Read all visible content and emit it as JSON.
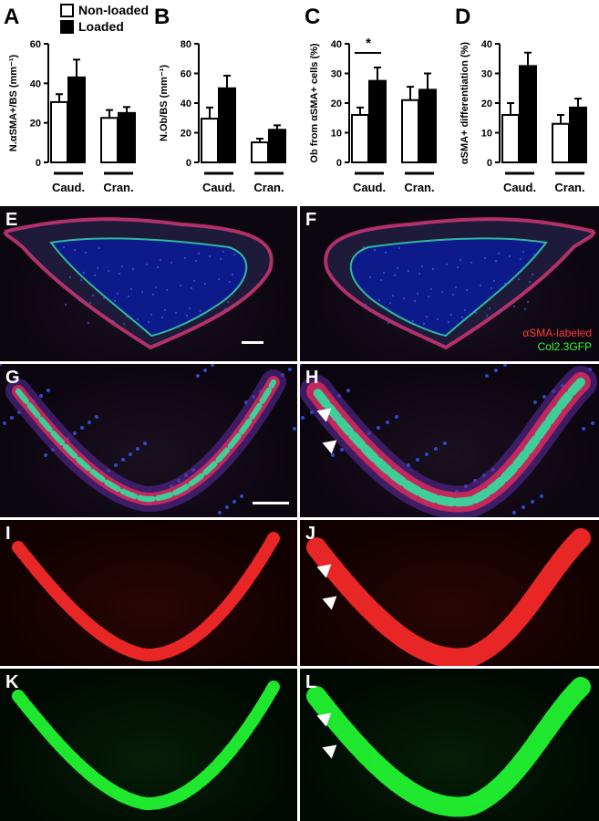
{
  "legend": {
    "nonloaded": "Non-loaded",
    "loaded": "Loaded"
  },
  "colors": {
    "nonloaded_fill": "#ffffff",
    "loaded_fill": "#000000",
    "alpha_sma": "#ff3a3a",
    "col23": "#33ff33"
  },
  "charts": [
    {
      "letter": "A",
      "ylabel": "N.αSMA+/BS (mm⁻¹)",
      "ticks": [
        "0",
        "20",
        "40",
        "60"
      ],
      "ylim": [
        0,
        60
      ],
      "groups": [
        "Caud.",
        "Cran."
      ],
      "significance": ""
    },
    {
      "letter": "B",
      "ylabel": "N.Ob/BS (mm⁻¹)",
      "ticks": [
        "0",
        "20",
        "40",
        "60",
        "80"
      ],
      "ylim": [
        0,
        80
      ],
      "groups": [
        "Caud.",
        "Cran."
      ],
      "significance": ""
    },
    {
      "letter": "C",
      "ylabel": "Ob from αSMA+ cells (%)",
      "ticks": [
        "0",
        "10",
        "20",
        "30",
        "40"
      ],
      "ylim": [
        0,
        40
      ],
      "groups": [
        "Caud.",
        "Cran."
      ],
      "significance": "*"
    },
    {
      "letter": "D",
      "ylabel": "αSMA+ differentiation (%)",
      "ticks": [
        "0",
        "10",
        "20",
        "30",
        "40"
      ],
      "ylim": [
        0,
        40
      ],
      "groups": [
        "Caud.",
        "Cran."
      ],
      "significance": ""
    }
  ],
  "chart_data": [
    {
      "type": "bar",
      "categories": [
        "Caud.",
        "Cran."
      ],
      "series": [
        {
          "name": "Non-loaded",
          "values": [
            30.5,
            22.5
          ],
          "errors": [
            4,
            4
          ]
        },
        {
          "name": "Loaded",
          "values": [
            43,
            25
          ],
          "errors": [
            9,
            3
          ]
        }
      ],
      "ylabel": "N.αSMA+/BS (mm⁻¹)",
      "ylim": [
        0,
        60
      ]
    },
    {
      "type": "bar",
      "categories": [
        "Caud.",
        "Cran."
      ],
      "series": [
        {
          "name": "Non-loaded",
          "values": [
            29.5,
            13.5
          ],
          "errors": [
            7.5,
            2.5
          ]
        },
        {
          "name": "Loaded",
          "values": [
            50,
            22
          ],
          "errors": [
            8.5,
            3
          ]
        }
      ],
      "ylabel": "N.Ob/BS (mm⁻¹)",
      "ylim": [
        0,
        80
      ]
    },
    {
      "type": "bar",
      "categories": [
        "Caud.",
        "Cran."
      ],
      "series": [
        {
          "name": "Non-loaded",
          "values": [
            16,
            21
          ],
          "errors": [
            2.5,
            4.5
          ]
        },
        {
          "name": "Loaded",
          "values": [
            27.5,
            24.5
          ],
          "errors": [
            4.5,
            5.5
          ]
        }
      ],
      "ylabel": "Ob from αSMA+ cells (%)",
      "ylim": [
        0,
        40
      ],
      "annotations": [
        "*"
      ]
    },
    {
      "type": "bar",
      "categories": [
        "Caud.",
        "Cran."
      ],
      "series": [
        {
          "name": "Non-loaded",
          "values": [
            16,
            13
          ],
          "errors": [
            4,
            3
          ]
        },
        {
          "name": "Loaded",
          "values": [
            32.5,
            18.5
          ],
          "errors": [
            4.5,
            3
          ]
        }
      ],
      "ylabel": "αSMA+ differentiation (%)",
      "ylim": [
        0,
        40
      ]
    }
  ],
  "micrographs": [
    {
      "letter": "E",
      "stain": "merge",
      "side": "left"
    },
    {
      "letter": "F",
      "stain": "merge",
      "side": "right"
    },
    {
      "letter": "G",
      "stain": "merge",
      "side": "left"
    },
    {
      "letter": "H",
      "stain": "merge",
      "side": "right"
    },
    {
      "letter": "I",
      "stain": "red",
      "side": "left"
    },
    {
      "letter": "J",
      "stain": "red",
      "side": "right"
    },
    {
      "letter": "K",
      "stain": "green",
      "side": "left"
    },
    {
      "letter": "L",
      "stain": "green",
      "side": "right"
    }
  ],
  "stain_legend": {
    "red": "αSMA-labeled",
    "green": "Col2.3GFP"
  }
}
